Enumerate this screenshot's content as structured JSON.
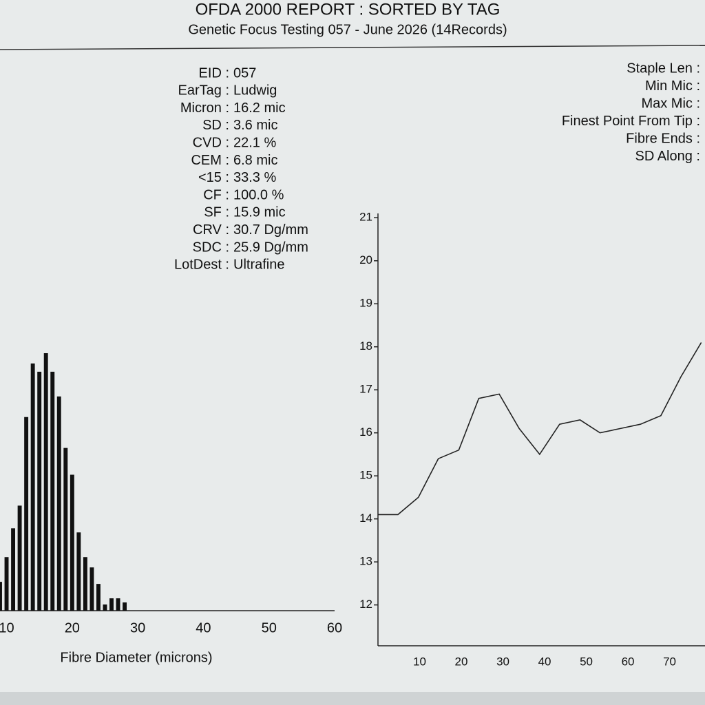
{
  "header": {
    "title": "OFDA 2000 REPORT : SORTED BY TAG",
    "subtitle": "Genetic Focus Testing 057 - June 2026 (14Records)"
  },
  "stats": [
    {
      "label": "EID :",
      "value": "057"
    },
    {
      "label": "EarTag :",
      "value": "Ludwig"
    },
    {
      "label": "Micron :",
      "value": "16.2 mic"
    },
    {
      "label": "SD :",
      "value": "3.6 mic"
    },
    {
      "label": "CVD :",
      "value": "22.1 %"
    },
    {
      "label": "CEM :",
      "value": "6.8 mic"
    },
    {
      "label": "<15 :",
      "value": "33.3 %"
    },
    {
      "label": "CF :",
      "value": "100.0 %"
    },
    {
      "label": "SF :",
      "value": "15.9 mic"
    },
    {
      "label": "CRV :",
      "value": "30.7 Dg/mm"
    },
    {
      "label": "SDC :",
      "value": "25.9 Dg/mm"
    },
    {
      "label": "LotDest :",
      "value": "Ultrafine"
    }
  ],
  "right_stats": [
    "Staple Len :",
    "Min Mic :",
    "Max Mic :",
    "Finest Point From Tip :",
    "Fibre Ends :",
    "SD Along :"
  ],
  "chart_data": [
    {
      "type": "histogram",
      "x_label": "Fibre Diameter (microns)",
      "color": "#111111",
      "bins": [
        8.5,
        9.5,
        10.5,
        11.5,
        12.5,
        13.5,
        14.5,
        15.5,
        16.5,
        17.5,
        18.5,
        19.5,
        20.5,
        21.5,
        22.5,
        23.5,
        24.5,
        25.5,
        26.5,
        27.5,
        28.5
      ],
      "values": [
        1.4,
        2.6,
        4.0,
        5.1,
        9.4,
        12.0,
        11.6,
        12.5,
        11.6,
        10.4,
        7.9,
        6.6,
        3.8,
        2.6,
        2.1,
        1.3,
        0.3,
        0.6,
        0.6,
        0.4
      ],
      "xlim": [
        9,
        60
      ],
      "xticks": [
        10,
        20,
        30,
        40,
        50,
        60
      ]
    },
    {
      "type": "line",
      "color": "#222222",
      "x": [
        0,
        4.8,
        9.7,
        14.5,
        19.4,
        24.2,
        29.1,
        33.9,
        38.8,
        43.6,
        48.5,
        53.3,
        58.2,
        63,
        67.9,
        72.7,
        77.6
      ],
      "values": [
        14.1,
        14.1,
        14.5,
        15.4,
        15.6,
        16.8,
        16.9,
        16.1,
        15.5,
        16.2,
        16.3,
        16.0,
        16.1,
        16.2,
        16.4,
        17.3,
        18.1
      ],
      "xlim": [
        0,
        78.5
      ],
      "ylim": [
        11.05,
        21.1
      ],
      "xticks": [
        10,
        20,
        30,
        40,
        50,
        60,
        70
      ],
      "yticks": [
        12,
        13,
        14,
        15,
        16,
        17,
        18,
        19,
        20,
        21
      ]
    }
  ]
}
